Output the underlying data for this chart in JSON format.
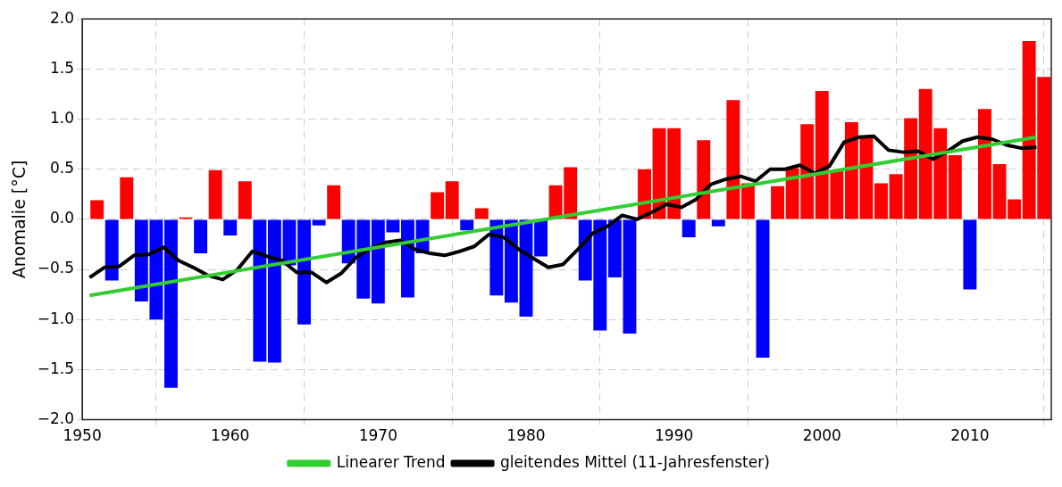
{
  "chart_data": {
    "type": "bar",
    "ylabel": "Anomalie [°C]",
    "xlim": [
      1950,
      2015.5
    ],
    "xticks": [
      1950,
      1960,
      1970,
      1980,
      1990,
      2000,
      2010
    ],
    "ylim": [
      -2,
      2
    ],
    "yticks": [
      {
        "value": -2,
        "label": "−2.0"
      },
      {
        "value": -1.5,
        "label": "−1.5"
      },
      {
        "value": -1,
        "label": "−1.0"
      },
      {
        "value": -0.5,
        "label": "−0.5"
      },
      {
        "value": 0,
        "label": "0.0"
      },
      {
        "value": 0.5,
        "label": "0.5"
      },
      {
        "value": 1,
        "label": "1.0"
      },
      {
        "value": 1.5,
        "label": "1.5"
      },
      {
        "value": 2,
        "label": "2.0"
      }
    ],
    "grid": true,
    "legend": "bottom",
    "marker": "none",
    "line_style": "solid",
    "series": [
      {
        "x": [
          1951,
          1952,
          1953,
          1954,
          1955,
          1956,
          1957,
          1958,
          1959,
          1960,
          1961,
          1962,
          1963,
          1964,
          1965,
          1966,
          1967,
          1968,
          1969,
          1970,
          1971,
          1972,
          1973,
          1974,
          1975,
          1976,
          1977,
          1978,
          1979,
          1980,
          1981,
          1982,
          1983,
          1984,
          1985,
          1986,
          1987,
          1988,
          1989,
          1990,
          1991,
          1992,
          1993,
          1994,
          1995,
          1996,
          1997,
          1998,
          1999,
          2000,
          2001,
          2002,
          2003,
          2004,
          2005,
          2006,
          2007,
          2008,
          2009,
          2010,
          2011,
          2012,
          2013,
          2014,
          2015
        ],
        "values": [
          0.19,
          -0.61,
          0.42,
          -0.82,
          -1.0,
          -1.68,
          0.02,
          -0.34,
          0.49,
          -0.16,
          0.38,
          -1.42,
          -1.43,
          -0.46,
          -1.05,
          -0.06,
          0.34,
          -0.44,
          -0.79,
          -0.84,
          -0.13,
          -0.78,
          -0.34,
          0.27,
          0.38,
          -0.11,
          0.11,
          -0.76,
          -0.83,
          -0.97,
          -0.37,
          0.34,
          0.52,
          -0.61,
          -1.11,
          -0.58,
          -1.14,
          0.5,
          0.91,
          0.91,
          -0.18,
          0.79,
          -0.07,
          1.19,
          0.36,
          -1.38,
          0.33,
          0.51,
          0.95,
          1.28,
          0.48,
          0.97,
          0.82,
          0.36,
          0.45,
          1.01,
          1.3,
          0.91,
          0.64,
          -0.7,
          1.1,
          0.55,
          0.2,
          1.78,
          1.42
        ],
        "colors": [
          "#ff0000",
          "#0000ff",
          "#ff0000",
          "#0000ff",
          "#0000ff",
          "#0000ff",
          "#ff0000",
          "#0000ff",
          "#ff0000",
          "#0000ff",
          "#ff0000",
          "#0000ff",
          "#0000ff",
          "#0000ff",
          "#0000ff",
          "#0000ff",
          "#ff0000",
          "#0000ff",
          "#0000ff",
          "#0000ff",
          "#0000ff",
          "#0000ff",
          "#0000ff",
          "#ff0000",
          "#ff0000",
          "#0000ff",
          "#ff0000",
          "#0000ff",
          "#0000ff",
          "#0000ff",
          "#0000ff",
          "#ff0000",
          "#ff0000",
          "#0000ff",
          "#0000ff",
          "#0000ff",
          "#0000ff",
          "#ff0000",
          "#ff0000",
          "#ff0000",
          "#0000ff",
          "#ff0000",
          "#0000ff",
          "#ff0000",
          "#ff0000",
          "#0000ff",
          "#ff0000",
          "#ff0000",
          "#ff0000",
          "#ff0000",
          "#ff0000",
          "#ff0000",
          "#ff0000",
          "#ff0000",
          "#ff0000",
          "#ff0000",
          "#ff0000",
          "#ff0000",
          "#ff0000",
          "#0000ff",
          "#ff0000",
          "#ff0000",
          "#ff0000",
          "#ff0000",
          "#ff0000"
        ]
      },
      {
        "type": "line",
        "name": "Linearer Trend",
        "color": "#33cc33",
        "x": [
          1950.5,
          2014.5
        ],
        "values": [
          -0.76,
          0.82
        ]
      },
      {
        "type": "line",
        "name": "gleitendes Mittel (11-Jahresfenster)",
        "color": "#000000",
        "x": [
          1950.5,
          1951.5,
          1952.5,
          1953.5,
          1954.5,
          1955.5,
          1956.5,
          1957.5,
          1958.5,
          1959.5,
          1960.5,
          1961.5,
          1962.5,
          1963.5,
          1964.5,
          1965.5,
          1966.5,
          1967.5,
          1968.5,
          1969.5,
          1970.5,
          1971.5,
          1972.5,
          1973.5,
          1974.5,
          1975.5,
          1976.5,
          1977.5,
          1978.5,
          1979.5,
          1980.5,
          1981.5,
          1982.5,
          1983.5,
          1984.5,
          1985.5,
          1986.5,
          1987.5,
          1988.5,
          1989.5,
          1990.5,
          1991.5,
          1992.5,
          1993.5,
          1994.5,
          1995.5,
          1996.5,
          1997.5,
          1998.5,
          1999.5,
          2000.5,
          2001.5,
          2002.5,
          2003.5,
          2004.5,
          2005.5,
          2006.5,
          2007.5,
          2008.5,
          2009.5,
          2010.5,
          2011.5,
          2012.5,
          2013.5,
          2014.5
        ],
        "values": [
          -0.58,
          -0.48,
          -0.47,
          -0.36,
          -0.35,
          -0.28,
          -0.41,
          -0.48,
          -0.56,
          -0.6,
          -0.5,
          -0.32,
          -0.37,
          -0.41,
          -0.53,
          -0.53,
          -0.63,
          -0.54,
          -0.38,
          -0.29,
          -0.23,
          -0.21,
          -0.3,
          -0.34,
          -0.36,
          -0.32,
          -0.27,
          -0.15,
          -0.18,
          -0.3,
          -0.39,
          -0.48,
          -0.45,
          -0.3,
          -0.14,
          -0.07,
          0.04,
          0.0,
          0.07,
          0.15,
          0.12,
          0.2,
          0.35,
          0.4,
          0.43,
          0.38,
          0.5,
          0.5,
          0.54,
          0.46,
          0.53,
          0.77,
          0.82,
          0.83,
          0.69,
          0.67,
          0.68,
          0.6,
          0.68,
          0.78,
          0.82,
          0.8,
          0.74,
          0.71,
          0.72
        ]
      }
    ]
  }
}
